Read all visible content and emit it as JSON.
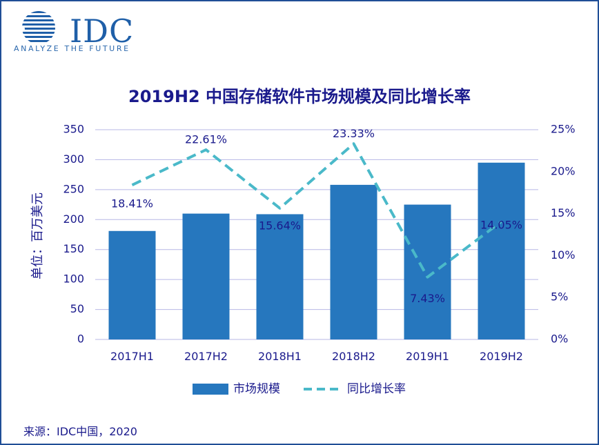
{
  "logo": {
    "name": "IDC",
    "tagline": "ANALYZE THE FUTURE"
  },
  "source": "来源：IDC中国，2020",
  "chart_data": {
    "type": "bar",
    "title": "2019H2 中国存储软件市场规模及同比增长率",
    "categories": [
      "2017H1",
      "2017H2",
      "2018H1",
      "2018H2",
      "2019H1",
      "2019H2"
    ],
    "ylabel": "单位：百万美元",
    "ylim": [
      0,
      350
    ],
    "yticks": [
      "0",
      "50",
      "100",
      "150",
      "200",
      "250",
      "300",
      "350"
    ],
    "y2lim": [
      0,
      25
    ],
    "y2ticks": [
      "0%",
      "5%",
      "10%",
      "15%",
      "20%",
      "25%"
    ],
    "grid": true,
    "legend_position": "bottom",
    "series": [
      {
        "name": "市场规模",
        "kind": "bar",
        "color": "#2677be",
        "values": [
          181,
          210,
          209,
          258,
          225,
          295
        ]
      },
      {
        "name": "同比增长率",
        "kind": "line",
        "style": "dashed",
        "axis": "right",
        "color": "#4ab9c9",
        "values": [
          18.41,
          22.61,
          15.64,
          23.33,
          7.43,
          14.05
        ],
        "labels": [
          "18.41%",
          "22.61%",
          "15.64%",
          "23.33%",
          "7.43%",
          "14.05%"
        ]
      }
    ]
  }
}
